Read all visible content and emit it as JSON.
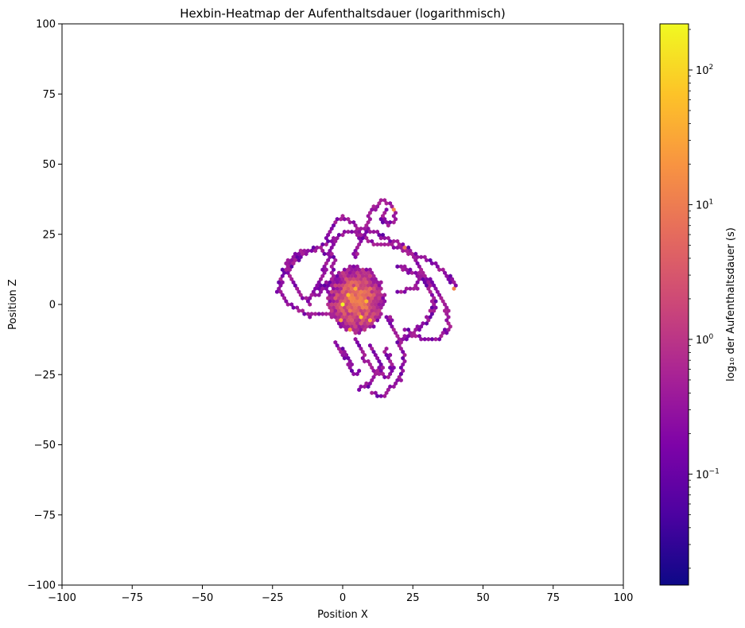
{
  "chart_data": {
    "type": "heatmap",
    "subtype": "hexbin",
    "title": "Hexbin-Heatmap der Aufenthaltsdauer (logarithmisch)",
    "xlabel": "Position X",
    "ylabel": "Position Z",
    "xlim": [
      -100,
      100
    ],
    "ylim": [
      -100,
      100
    ],
    "xticks": [
      -100,
      -75,
      -50,
      -25,
      0,
      25,
      50,
      75,
      100
    ],
    "yticks": [
      -100,
      -75,
      -50,
      -25,
      0,
      25,
      50,
      75,
      100
    ],
    "grid": false,
    "colormap": "plasma",
    "colorbar": {
      "label": "log₁₀ der Aufenthaltsdauer (s)",
      "scale": "log",
      "range": [
        0.015,
        220
      ],
      "ticks": [
        {
          "value": 0.1,
          "base": "10",
          "exp": "−1"
        },
        {
          "value": 1,
          "base": "10",
          "exp": "0"
        },
        {
          "value": 10,
          "base": "10",
          "exp": "1"
        },
        {
          "value": 100,
          "base": "10",
          "exp": "2"
        }
      ]
    },
    "core_region": {
      "center": [
        5,
        2
      ],
      "radius_x": 10,
      "radius_z": 12,
      "typical_value_range": [
        0.3,
        20
      ],
      "peak_value": 200
    },
    "trajectories": [
      [
        [
          -12,
          0
        ],
        [
          -18,
          8
        ],
        [
          -20,
          15
        ],
        [
          -15,
          19
        ],
        [
          -8,
          20
        ],
        [
          -3,
          16
        ],
        [
          -4,
          9
        ],
        [
          -9,
          6
        ],
        [
          -12,
          2
        ]
      ],
      [
        [
          -23,
          5
        ],
        [
          -21,
          12
        ],
        [
          -14,
          18
        ],
        [
          -5,
          22
        ],
        [
          2,
          26
        ],
        [
          8,
          27
        ],
        [
          14,
          25
        ]
      ],
      [
        [
          -23,
          5
        ],
        [
          -19,
          0
        ],
        [
          -12,
          -4
        ],
        [
          -4,
          -3
        ],
        [
          -1,
          0
        ]
      ],
      [
        [
          -10,
          3
        ],
        [
          -4,
          7
        ],
        [
          2,
          10
        ],
        [
          6,
          12
        ]
      ],
      [
        [
          -6,
          24
        ],
        [
          -3,
          29
        ],
        [
          0,
          31
        ],
        [
          5,
          28
        ],
        [
          6,
          22
        ],
        [
          4,
          17
        ]
      ],
      [
        [
          8,
          25
        ],
        [
          10,
          33
        ],
        [
          14,
          37
        ],
        [
          18,
          35
        ],
        [
          19,
          30
        ],
        [
          16,
          28
        ],
        [
          14,
          31
        ],
        [
          16,
          34
        ]
      ],
      [
        [
          14,
          24
        ],
        [
          20,
          22
        ],
        [
          25,
          18
        ],
        [
          28,
          12
        ],
        [
          26,
          6
        ],
        [
          20,
          4
        ]
      ],
      [
        [
          22,
          19
        ],
        [
          30,
          16
        ],
        [
          36,
          12
        ],
        [
          40,
          7
        ]
      ],
      [
        [
          28,
          12
        ],
        [
          34,
          5
        ],
        [
          37,
          -2
        ],
        [
          38,
          -8
        ],
        [
          35,
          -12
        ],
        [
          28,
          -12
        ],
        [
          22,
          -9
        ]
      ],
      [
        [
          20,
          14
        ],
        [
          30,
          8
        ],
        [
          33,
          0
        ],
        [
          30,
          -6
        ],
        [
          25,
          -10
        ],
        [
          20,
          -14
        ]
      ],
      [
        [
          16,
          -4
        ],
        [
          20,
          -12
        ],
        [
          22,
          -20
        ],
        [
          20,
          -27
        ],
        [
          16,
          -31
        ],
        [
          14,
          -33
        ],
        [
          10,
          -31
        ]
      ],
      [
        [
          5,
          -12
        ],
        [
          8,
          -20
        ],
        [
          12,
          -24
        ],
        [
          16,
          -26
        ],
        [
          18,
          -22
        ],
        [
          15,
          -16
        ]
      ],
      [
        [
          -2,
          -14
        ],
        [
          2,
          -20
        ],
        [
          4,
          -25
        ],
        [
          6,
          -24
        ]
      ],
      [
        [
          10,
          -15
        ],
        [
          14,
          -22
        ],
        [
          10,
          -28
        ],
        [
          6,
          -30
        ]
      ],
      [
        [
          5,
          26
        ],
        [
          10,
          22
        ],
        [
          16,
          21
        ],
        [
          23,
          20
        ]
      ],
      [
        [
          -2,
          24
        ],
        [
          -4,
          20
        ],
        [
          -6,
          14
        ],
        [
          -8,
          8
        ]
      ]
    ],
    "hotspots": [
      {
        "x": 0,
        "z": 0,
        "value": 200
      },
      {
        "x": 2,
        "z": 3,
        "value": 60
      },
      {
        "x": 6,
        "z": -4,
        "value": 80
      },
      {
        "x": 4,
        "z": 6,
        "value": 40
      },
      {
        "x": 8,
        "z": 1,
        "value": 50
      },
      {
        "x": -1,
        "z": -6,
        "value": 30
      },
      {
        "x": 10,
        "z": -6,
        "value": 40
      },
      {
        "x": 3,
        "z": -9,
        "value": 25
      },
      {
        "x": 18,
        "z": 34,
        "value": 15
      },
      {
        "x": 40,
        "z": 6,
        "value": 12
      },
      {
        "x": 22,
        "z": 20,
        "value": 8
      }
    ]
  }
}
